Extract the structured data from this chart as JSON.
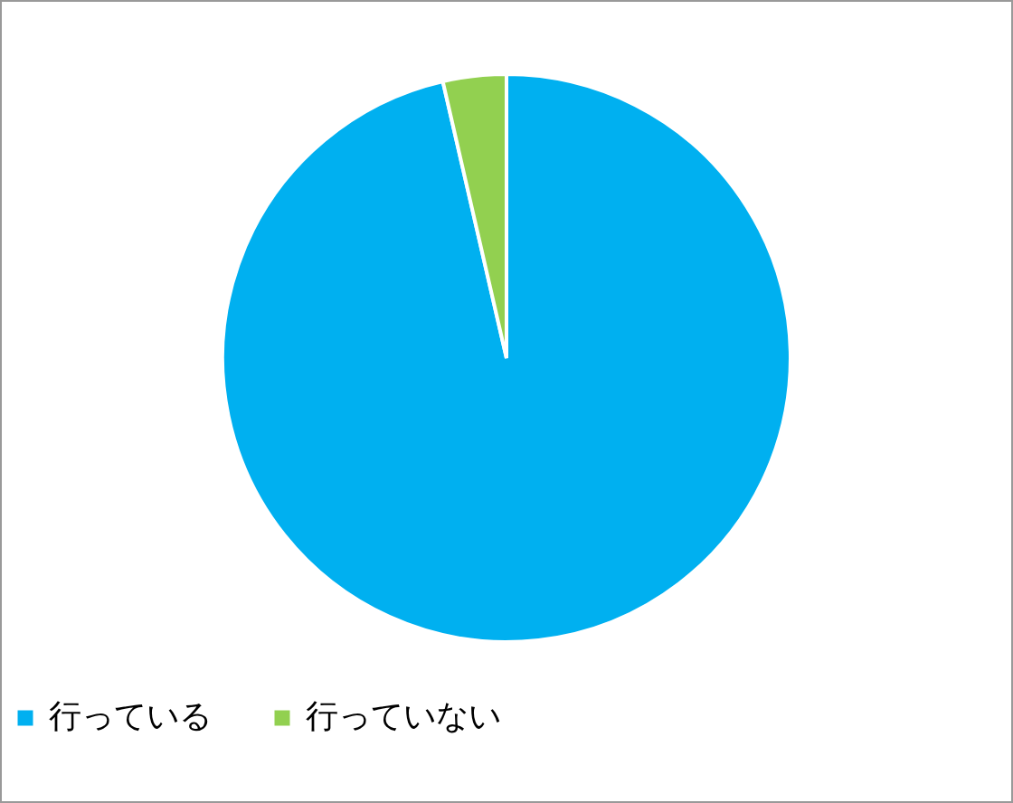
{
  "chart_data": {
    "type": "pie",
    "categories": [
      "行っている",
      "行っていない"
    ],
    "values": [
      96.4,
      3.6
    ],
    "colors": [
      "#00b0f0",
      "#92d050"
    ],
    "legend": "bottom"
  }
}
